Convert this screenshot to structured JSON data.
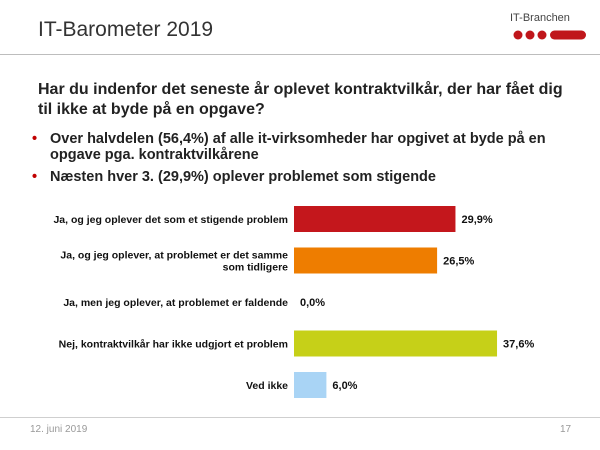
{
  "header": {
    "title": "IT-Barometer 2019"
  },
  "logo": {
    "text": "IT-Branchen",
    "colors": [
      "#c0161b",
      "#c0161b",
      "#c0161b",
      "#c0161b"
    ]
  },
  "question": "Har du indenfor det seneste år oplevet kontraktvilkår, der har fået dig til ikke at byde på en opgave?",
  "bullets": [
    "Over halvdelen (56,4%) af alle it-virksomheder har opgivet at byde på en opgave pga. kontraktvilkårene",
    "Næsten hver 3. (29,9%) oplever problemet som stigende"
  ],
  "bullet_symbol": "•",
  "chart_data": {
    "type": "bar",
    "orientation": "horizontal",
    "categories": [
      [
        "Ja, og jeg oplever det som et stigende problem"
      ],
      [
        "Ja, og jeg oplever, at problemet er det samme",
        "som tidligere"
      ],
      [
        "Ja, men jeg oplever, at problemet er faldende"
      ],
      [
        "Nej, kontraktvilkår har ikke udgjort et problem"
      ],
      [
        "Ved ikke"
      ]
    ],
    "values": [
      29.9,
      26.5,
      0.0,
      37.6,
      6.0
    ],
    "value_labels": [
      "29,9%",
      "26,5%",
      "0,0%",
      "37,6%",
      "6,0%"
    ],
    "colors": [
      "#c4171c",
      "#ee7d00",
      "#ffffff",
      "#c6d018",
      "#a9d4f5"
    ],
    "xlim": [
      0,
      50
    ],
    "grid": false
  },
  "footer": {
    "date": "12. juni 2019",
    "page": "17"
  }
}
